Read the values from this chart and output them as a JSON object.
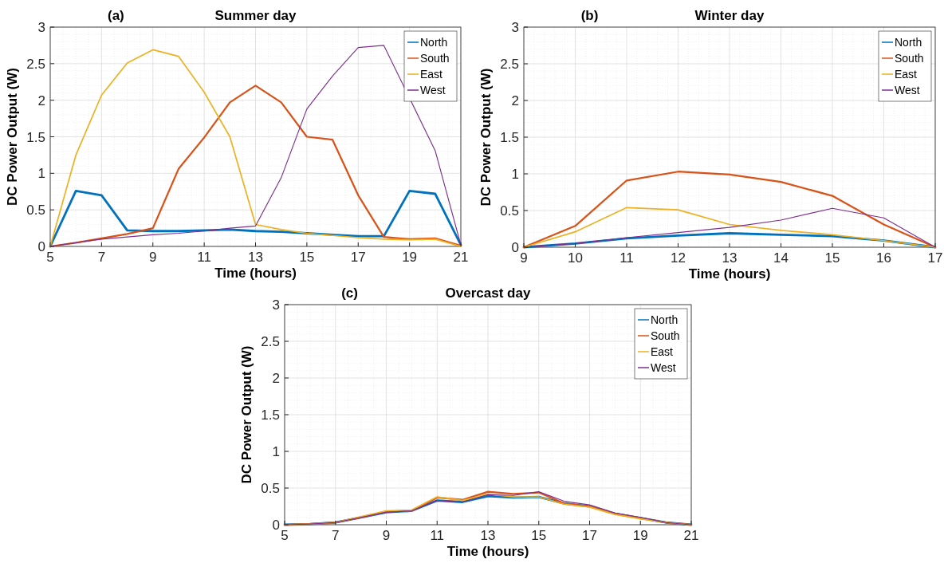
{
  "chart_data": [
    {
      "type": "line",
      "title": "Summer day",
      "annotations": [
        "(a)"
      ],
      "xlabel": "Time (hours)",
      "ylabel": "DC Power Output (W)",
      "x": [
        5,
        6,
        7,
        8,
        9,
        10,
        11,
        12,
        13,
        14,
        15,
        16,
        17,
        18,
        19,
        20,
        21
      ],
      "xlim": [
        5,
        21
      ],
      "xticks": [
        5,
        7,
        9,
        11,
        13,
        15,
        17,
        19,
        21
      ],
      "ylim": [
        0,
        3
      ],
      "yticks": [
        0,
        0.5,
        1,
        1.5,
        2,
        2.5,
        3
      ],
      "grid": true,
      "legend": "top right",
      "series": [
        {
          "name": "North",
          "color": "#0072bd",
          "values": [
            0,
            0.76,
            0.7,
            0.22,
            0.21,
            0.21,
            0.22,
            0.23,
            0.21,
            0.2,
            0.18,
            0.16,
            0.14,
            0.14,
            0.76,
            0.72,
            0.02
          ]
        },
        {
          "name": "South",
          "color": "#d95319",
          "values": [
            0,
            0.05,
            0.11,
            0.17,
            0.25,
            1.06,
            1.49,
            1.97,
            2.2,
            1.97,
            1.5,
            1.46,
            0.7,
            0.13,
            0.1,
            0.11,
            0.01
          ]
        },
        {
          "name": "East",
          "color": "#edb120",
          "values": [
            0,
            1.25,
            2.07,
            2.51,
            2.69,
            2.6,
            2.11,
            1.5,
            0.3,
            0.23,
            0.18,
            0.15,
            0.12,
            0.1,
            0.09,
            0.1,
            0
          ]
        },
        {
          "name": "West",
          "color": "#7e2f8e",
          "values": [
            0,
            0.05,
            0.1,
            0.13,
            0.16,
            0.18,
            0.21,
            0.25,
            0.28,
            0.94,
            1.88,
            2.33,
            2.72,
            2.75,
            null,
            1.31,
            0.02
          ]
        }
      ]
    },
    {
      "type": "line",
      "title": "Winter day",
      "annotations": [
        "(b)"
      ],
      "xlabel": "Time (hours)",
      "ylabel": "DC Power Output (W)",
      "x": [
        9,
        10,
        11,
        12,
        13,
        14,
        15,
        16,
        17
      ],
      "xlim": [
        9,
        17
      ],
      "xticks": [
        9,
        10,
        11,
        12,
        13,
        14,
        15,
        16,
        17
      ],
      "ylim": [
        0,
        3
      ],
      "yticks": [
        0,
        0.5,
        1,
        1.5,
        2,
        2.5,
        3
      ],
      "grid": true,
      "legend": "top right",
      "series": [
        {
          "name": "North",
          "color": "#0072bd",
          "values": [
            0,
            0.05,
            0.12,
            0.16,
            0.19,
            0.17,
            0.15,
            0.09,
            0
          ]
        },
        {
          "name": "South",
          "color": "#d95319",
          "values": [
            0,
            0.29,
            0.91,
            1.03,
            0.99,
            0.89,
            0.7,
            0.31,
            0
          ]
        },
        {
          "name": "East",
          "color": "#edb120",
          "values": [
            0,
            0.21,
            0.54,
            0.51,
            0.31,
            0.23,
            0.17,
            0.09,
            0
          ]
        },
        {
          "name": "West",
          "color": "#7e2f8e",
          "values": [
            0,
            0.05,
            0.13,
            0.2,
            0.27,
            0.37,
            0.53,
            0.4,
            0
          ]
        }
      ]
    },
    {
      "type": "line",
      "title": "Overcast day",
      "annotations": [
        "(c)"
      ],
      "xlabel": "Time (hours)",
      "ylabel": "DC Power Output (W)",
      "x": [
        5,
        6,
        7,
        8,
        9,
        10,
        11,
        12,
        13,
        14,
        15,
        16,
        17,
        18,
        19,
        20,
        21
      ],
      "xlim": [
        5,
        21
      ],
      "xticks": [
        5,
        7,
        9,
        11,
        13,
        15,
        17,
        19,
        21
      ],
      "ylim": [
        0,
        3
      ],
      "yticks": [
        0,
        0.5,
        1,
        1.5,
        2,
        2.5,
        3
      ],
      "grid": true,
      "legend": "top right",
      "series": [
        {
          "name": "North",
          "color": "#0072bd",
          "values": [
            0,
            0.01,
            0.03,
            0.1,
            0.17,
            0.19,
            0.33,
            0.31,
            0.39,
            0.37,
            0.38,
            0.29,
            0.25,
            0.15,
            0.09,
            0.03,
            0
          ]
        },
        {
          "name": "South",
          "color": "#d95319",
          "values": [
            0,
            0.01,
            0.03,
            0.1,
            0.18,
            0.19,
            0.37,
            0.34,
            0.45,
            0.42,
            0.44,
            0.29,
            0.25,
            0.15,
            0.09,
            0.03,
            0
          ]
        },
        {
          "name": "East",
          "color": "#edb120",
          "values": [
            0,
            0.01,
            0.03,
            0.11,
            0.19,
            0.2,
            0.38,
            0.33,
            0.42,
            0.38,
            0.38,
            0.28,
            0.24,
            0.14,
            0.08,
            0.03,
            0
          ]
        },
        {
          "name": "West",
          "color": "#7e2f8e",
          "values": [
            0,
            0.01,
            0.03,
            0.1,
            0.17,
            0.19,
            0.33,
            0.31,
            0.41,
            0.4,
            0.45,
            0.32,
            0.27,
            0.16,
            0.1,
            0.03,
            0
          ]
        }
      ]
    }
  ]
}
